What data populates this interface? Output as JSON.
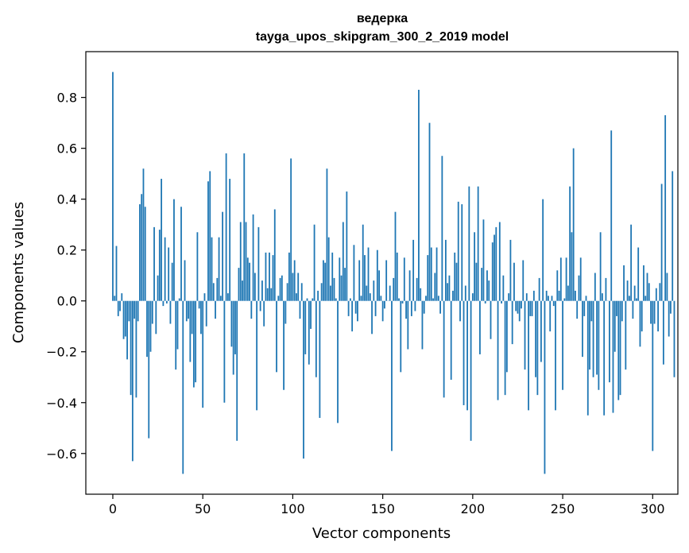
{
  "chart_data": {
    "type": "bar",
    "title_line1": "ведерка",
    "title_line2": "tayga_upos_skipgram_300_2_2019 model",
    "xlabel": "Vector components",
    "ylabel": "Components values",
    "xlim": [
      -15,
      314
    ],
    "ylim": [
      -0.76,
      0.98
    ],
    "xticks": [
      0,
      50,
      100,
      150,
      200,
      250,
      300
    ],
    "yticks": [
      -0.6,
      -0.4,
      -0.2,
      0.0,
      0.2,
      0.4,
      0.6,
      0.8
    ],
    "bar_color": "#1f77b4",
    "grid": false,
    "values": [
      0.9,
      0.02,
      0.216,
      -0.06,
      -0.04,
      0.03,
      -0.15,
      -0.14,
      -0.23,
      -0.08,
      -0.37,
      -0.63,
      -0.07,
      -0.38,
      -0.08,
      0.38,
      0.42,
      0.52,
      0.37,
      -0.22,
      -0.54,
      -0.2,
      -0.09,
      0.29,
      -0.13,
      0.1,
      0.28,
      0.48,
      -0.02,
      0.25,
      -0.01,
      0.21,
      -0.09,
      0.15,
      0.4,
      -0.27,
      -0.19,
      0.01,
      0.37,
      -0.68,
      0.16,
      -0.08,
      -0.07,
      -0.24,
      -0.13,
      -0.34,
      -0.32,
      0.27,
      -0.03,
      -0.13,
      -0.42,
      0.03,
      -0.1,
      0.47,
      0.51,
      0.25,
      0.07,
      -0.07,
      0.09,
      0.25,
      0.02,
      0.35,
      -0.4,
      0.58,
      0.03,
      0.48,
      -0.18,
      -0.29,
      -0.21,
      -0.55,
      0.13,
      0.31,
      0.08,
      0.58,
      0.31,
      0.17,
      0.15,
      -0.07,
      0.34,
      0.11,
      -0.43,
      0.29,
      -0.04,
      0.08,
      -0.1,
      0.19,
      0.05,
      0.19,
      0.05,
      0.18,
      0.36,
      -0.28,
      0.02,
      0.09,
      0.1,
      -0.35,
      -0.09,
      0.07,
      0.19,
      0.56,
      0.11,
      0.16,
      0.03,
      0.11,
      -0.07,
      0.07,
      -0.62,
      -0.21,
      0.01,
      -0.25,
      -0.11,
      0.01,
      0.3,
      -0.3,
      0.04,
      -0.46,
      0.07,
      0.16,
      0.15,
      0.52,
      0.25,
      0.06,
      0.19,
      0.09,
      0.01,
      -0.48,
      0.17,
      0.1,
      0.31,
      0.13,
      0.43,
      -0.06,
      0.01,
      -0.12,
      0.22,
      -0.05,
      -0.08,
      0.16,
      0.02,
      0.3,
      0.18,
      0.06,
      0.21,
      0.03,
      -0.13,
      0.08,
      -0.06,
      0.2,
      0.12,
      0.02,
      -0.08,
      -0.03,
      0.16,
      0.0,
      0.06,
      -0.59,
      0.09,
      0.35,
      0.19,
      0.01,
      -0.28,
      -0.01,
      0.17,
      -0.07,
      -0.19,
      0.12,
      -0.06,
      0.24,
      -0.04,
      0.09,
      0.83,
      0.05,
      -0.19,
      -0.05,
      0.02,
      0.18,
      0.7,
      0.21,
      0.01,
      0.11,
      0.21,
      0.02,
      -0.05,
      0.57,
      -0.38,
      0.24,
      0.07,
      0.1,
      -0.31,
      0.04,
      0.19,
      0.15,
      0.39,
      -0.08,
      0.38,
      -0.41,
      0.06,
      -0.43,
      0.45,
      -0.55,
      0.03,
      0.27,
      0.15,
      0.45,
      -0.21,
      0.13,
      0.32,
      -0.01,
      0.12,
      0.08,
      -0.15,
      0.23,
      0.26,
      0.29,
      -0.39,
      0.31,
      -0.01,
      0.1,
      -0.37,
      -0.28,
      0.03,
      0.24,
      -0.17,
      0.15,
      -0.04,
      -0.05,
      -0.08,
      -0.03,
      0.16,
      -0.27,
      0.03,
      -0.43,
      -0.06,
      -0.06,
      0.04,
      -0.3,
      -0.37,
      0.09,
      -0.24,
      0.4,
      -0.68,
      0.04,
      0.02,
      -0.12,
      0.02,
      -0.02,
      -0.43,
      0.12,
      0.04,
      0.17,
      -0.35,
      0.01,
      0.17,
      0.06,
      0.45,
      0.27,
      0.6,
      0.04,
      -0.07,
      0.1,
      0.17,
      -0.22,
      -0.06,
      0.02,
      -0.45,
      -0.27,
      -0.08,
      -0.3,
      0.11,
      -0.29,
      -0.35,
      0.27,
      0.03,
      -0.45,
      0.09,
      0.0,
      -0.32,
      0.67,
      -0.44,
      -0.2,
      -0.06,
      -0.39,
      -0.37,
      -0.08,
      0.14,
      -0.27,
      0.08,
      0.02,
      0.3,
      -0.07,
      0.06,
      0.01,
      0.21,
      -0.18,
      -0.12,
      0.14,
      0.02,
      0.11,
      0.07,
      -0.09,
      -0.59,
      -0.09,
      0.05,
      -0.12,
      0.07,
      0.46,
      -0.25,
      0.73,
      0.11,
      -0.14,
      -0.05,
      0.51,
      -0.3
    ]
  }
}
